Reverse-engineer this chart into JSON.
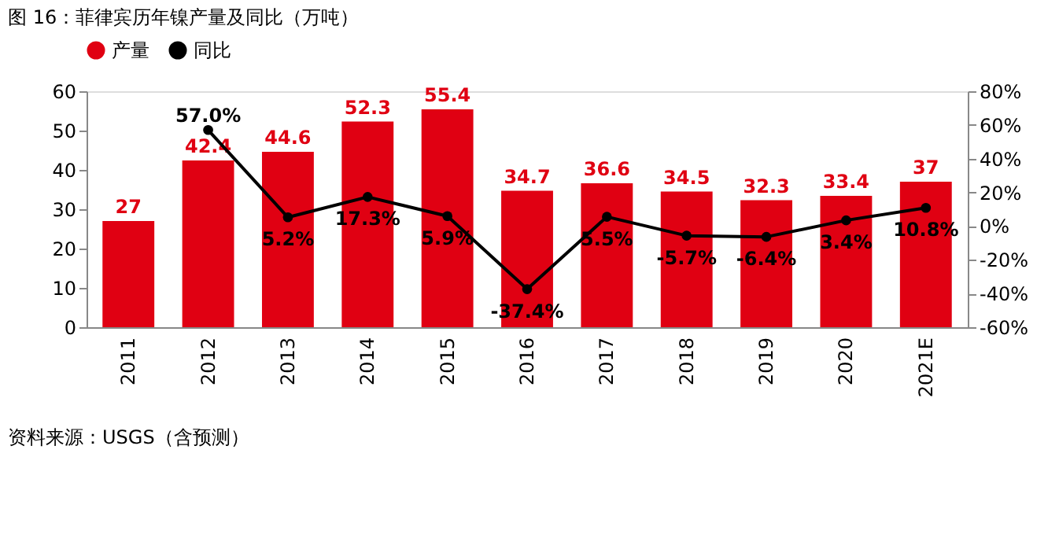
{
  "chart_data": {
    "type": "bar",
    "title": "图 16：菲律宾历年镍产量及同比（万吨）",
    "categories": [
      "2011",
      "2012",
      "2013",
      "2014",
      "2015",
      "2016",
      "2017",
      "2018",
      "2019",
      "2020",
      "2021E"
    ],
    "series": [
      {
        "name": "产量",
        "color": "#e00012",
        "values": [
          27,
          42.4,
          44.6,
          52.3,
          55.4,
          34.7,
          36.6,
          34.5,
          32.3,
          33.4,
          37
        ],
        "data_labels": true
      },
      {
        "name": "同比",
        "type": "line",
        "axis": "y2",
        "color": "#000000",
        "marker": "circle",
        "values": [
          null,
          57.0,
          5.2,
          17.3,
          5.9,
          -37.4,
          5.5,
          -5.7,
          -6.4,
          3.4,
          10.8
        ],
        "value_labels": [
          null,
          "57.0%",
          "5.2%",
          "17.3%",
          "5.9%",
          "-37.4%",
          "5.5%",
          "-5.7%",
          "-6.4%",
          "3.4%",
          "10.8%"
        ]
      }
    ],
    "ylim": [
      0,
      60
    ],
    "yticks": [
      0,
      10,
      20,
      30,
      40,
      50,
      60
    ],
    "y2lim": [
      -60,
      80
    ],
    "y2ticks": [
      {
        "value": -60,
        "label": "-60%"
      },
      {
        "value": -40,
        "label": "-40%"
      },
      {
        "value": -20,
        "label": "-20%"
      },
      {
        "value": 0,
        "label": "0%"
      },
      {
        "value": 20,
        "label": "20%"
      },
      {
        "value": 40,
        "label": "40%"
      },
      {
        "value": 60,
        "label": "60%"
      },
      {
        "value": 80,
        "label": "80%"
      }
    ],
    "grid": false,
    "legend": "top",
    "annotations": [
      "资料来源：USGS（含预测）"
    ]
  }
}
